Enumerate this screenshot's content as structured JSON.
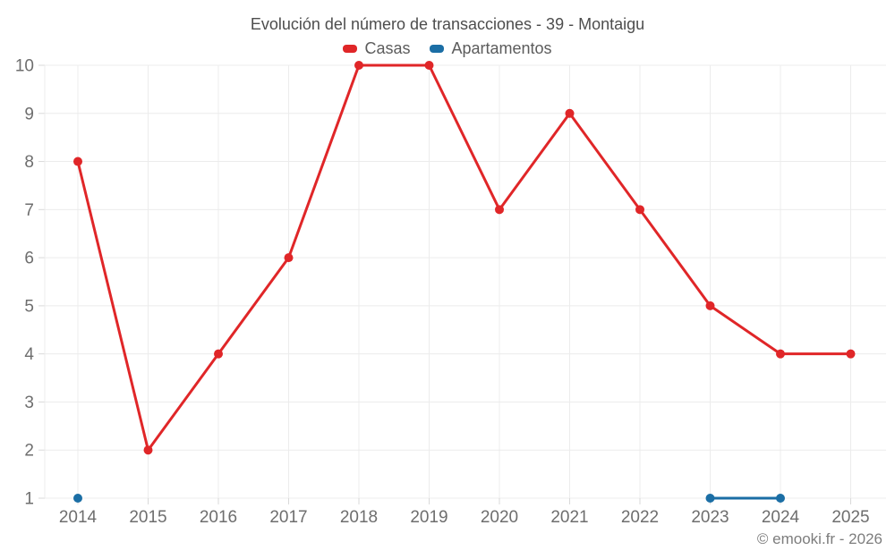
{
  "title": "Evolución del número de transacciones - 39 - Montaigu",
  "legend": {
    "items": [
      {
        "label": "Casas",
        "color": "#e02628"
      },
      {
        "label": "Apartamentos",
        "color": "#1b6ea5"
      }
    ]
  },
  "copyright": "© emooki.fr - 2026",
  "colors": {
    "casas": "#e02628",
    "apartamentos": "#1b6ea5",
    "gridline": "#ececec",
    "tick": "#d9d9d9",
    "axis_label": "#6e6e6e"
  },
  "chart_data": {
    "type": "line",
    "title": "Evolución del número de transacciones - 39 - Montaigu",
    "x": [
      2014,
      2015,
      2016,
      2017,
      2018,
      2019,
      2020,
      2021,
      2022,
      2023,
      2024,
      2025
    ],
    "series": [
      {
        "name": "Casas",
        "color": "#e02628",
        "values": [
          8,
          2,
          4,
          6,
          10,
          10,
          7,
          9,
          7,
          5,
          4,
          4
        ]
      },
      {
        "name": "Apartamentos",
        "color": "#1b6ea5",
        "values": [
          1,
          null,
          null,
          null,
          null,
          null,
          null,
          null,
          null,
          1,
          1,
          null
        ]
      }
    ],
    "xlabel": "",
    "ylabel": "",
    "ylim": [
      1,
      10
    ],
    "yticks": [
      1,
      2,
      3,
      4,
      5,
      6,
      7,
      8,
      9,
      10
    ],
    "grid": true,
    "legend_position": "top"
  }
}
